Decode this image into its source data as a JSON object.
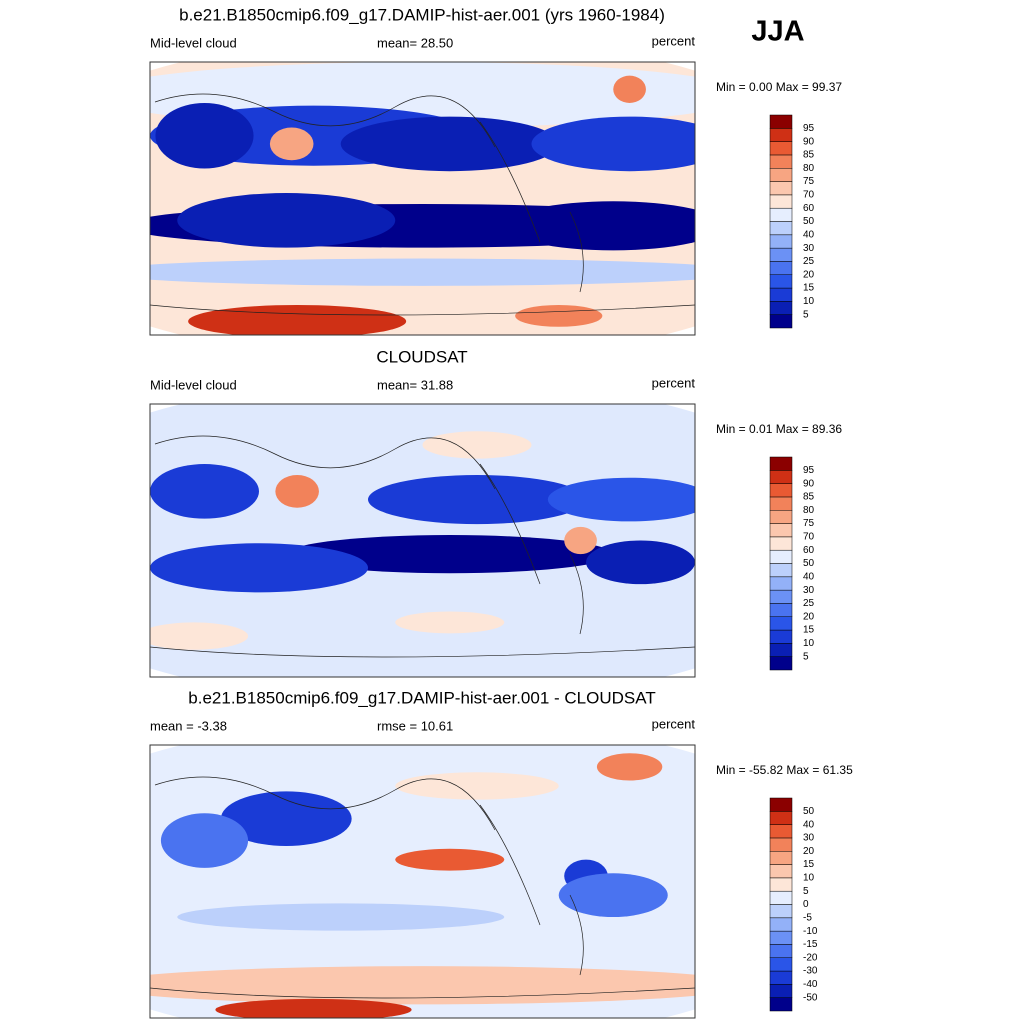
{
  "season": "JJA",
  "panels": [
    {
      "title": "b.e21.B1850cmip6.f09_g17.DAMIP-hist-aer.001 (yrs 1960-1984)",
      "left": "Mid-level cloud",
      "center": "mean=  28.50",
      "right": "percent",
      "minmax": "Min =   0.00 Max =  99.37",
      "colorbar": {
        "colors": [
          "#00008b",
          "#0a1fb4",
          "#1a3bd6",
          "#2a55e8",
          "#4a73f0",
          "#6b91f5",
          "#93b1f8",
          "#bcd0fb",
          "#e6eefe",
          "#fde6d8",
          "#fbc7ae",
          "#f7a582",
          "#f2825a",
          "#e95a33",
          "#cf3015",
          "#8b0000"
        ],
        "labels": [
          "5",
          "10",
          "15",
          "20",
          "25",
          "30",
          "40",
          "50",
          "60",
          "70",
          "75",
          "80",
          "85",
          "90",
          "95"
        ]
      }
    },
    {
      "title": "CLOUDSAT",
      "left": "Mid-level cloud",
      "center": "mean=  31.88",
      "right": "percent",
      "minmax": "Min =   0.01 Max =  89.36",
      "colorbar": {
        "colors": [
          "#00008b",
          "#0a1fb4",
          "#1a3bd6",
          "#2a55e8",
          "#4a73f0",
          "#6b91f5",
          "#93b1f8",
          "#bcd0fb",
          "#e6eefe",
          "#fde6d8",
          "#fbc7ae",
          "#f7a582",
          "#f2825a",
          "#e95a33",
          "#cf3015",
          "#8b0000"
        ],
        "labels": [
          "5",
          "10",
          "15",
          "20",
          "25",
          "30",
          "40",
          "50",
          "60",
          "70",
          "75",
          "80",
          "85",
          "90",
          "95"
        ]
      }
    },
    {
      "title": "b.e21.B1850cmip6.f09_g17.DAMIP-hist-aer.001 - CLOUDSAT",
      "left": "mean =  -3.38",
      "center": "rmse =  10.61",
      "right": "percent",
      "minmax": "Min = -55.82 Max =  61.35",
      "colorbar": {
        "colors": [
          "#00008b",
          "#0a1fb4",
          "#1a3bd6",
          "#2a55e8",
          "#4a73f0",
          "#6b91f5",
          "#93b1f8",
          "#bcd0fb",
          "#e6eefe",
          "#fde6d8",
          "#fbc7ae",
          "#f7a582",
          "#f2825a",
          "#e95a33",
          "#cf3015",
          "#8b0000"
        ],
        "labels": [
          "-50",
          "-40",
          "-30",
          "-20",
          "-15",
          "-10",
          "-5",
          "0",
          "5",
          "10",
          "15",
          "20",
          "30",
          "40",
          "50"
        ]
      }
    }
  ]
}
